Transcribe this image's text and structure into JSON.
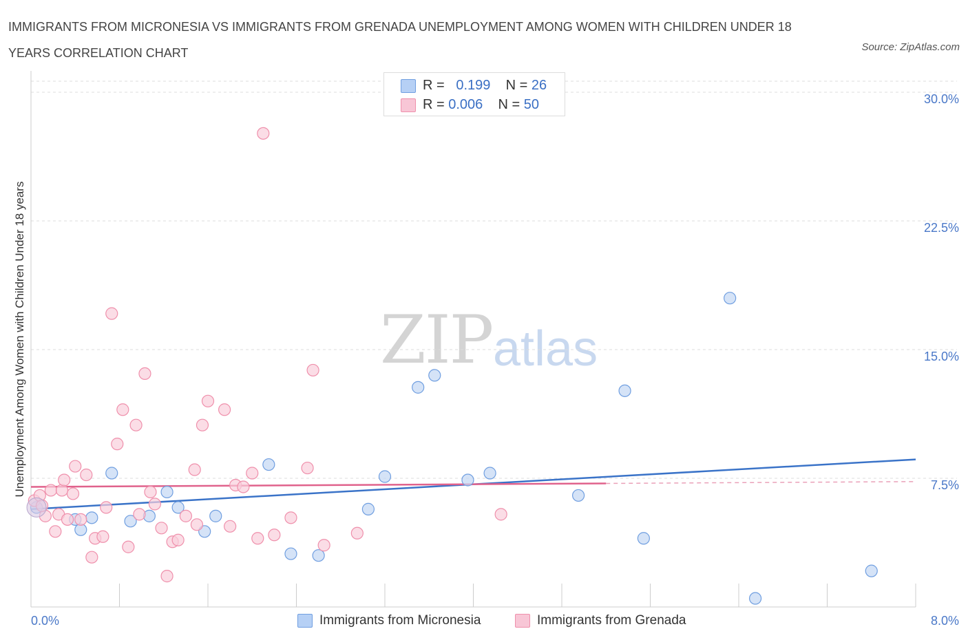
{
  "title": "IMMIGRANTS FROM MICRONESIA VS IMMIGRANTS FROM GRENADA UNEMPLOYMENT AMONG WOMEN WITH CHILDREN UNDER 18 YEARS CORRELATION CHART",
  "source": "Source: ZipAtlas.com",
  "watermark": {
    "zip": "ZIP",
    "atlas": "atlas"
  },
  "legend_top": [
    {
      "r_label": "R =",
      "r_value": "0.199",
      "n_label": "N =",
      "n_value": "26",
      "color": "#b6d0f5"
    },
    {
      "r_label": "R =",
      "r_value": "0.006",
      "n_label": "N =",
      "n_value": "50",
      "color": "#f8c6d6"
    }
  ],
  "chart_data": {
    "type": "scatter",
    "title": "IMMIGRANTS FROM MICRONESIA VS IMMIGRANTS FROM GRENADA UNEMPLOYMENT AMONG WOMEN WITH CHILDREN UNDER 18 YEARS CORRELATION CHART",
    "xlabel": "",
    "ylabel": "Unemployment Among Women with Children Under 18 years",
    "xlim": [
      0,
      8.0
    ],
    "ylim": [
      0,
      30.0
    ],
    "x_tick_labels": [
      "0.0%",
      "8.0%"
    ],
    "y_ticks": [
      7.5,
      15.0,
      22.5,
      30.0
    ],
    "y_tick_labels": [
      "7.5%",
      "15.0%",
      "22.5%",
      "30.0%"
    ],
    "grid": true,
    "legend_position": "bottom",
    "series": [
      {
        "name": "Immigrants from Micronesia",
        "color": "#6f9ee0",
        "fill": "#c3d7f3",
        "trend": {
          "x": [
            0.0,
            8.0
          ],
          "y": [
            5.7,
            8.6
          ],
          "color": "#3a73c8"
        },
        "points": [
          [
            0.05,
            5.8
          ],
          [
            0.4,
            5.1
          ],
          [
            0.45,
            4.5
          ],
          [
            0.55,
            5.2
          ],
          [
            0.73,
            7.8
          ],
          [
            0.9,
            5.0
          ],
          [
            1.07,
            5.3
          ],
          [
            1.23,
            6.7
          ],
          [
            1.33,
            5.8
          ],
          [
            1.57,
            4.4
          ],
          [
            1.67,
            5.3
          ],
          [
            2.15,
            8.3
          ],
          [
            2.35,
            3.1
          ],
          [
            2.6,
            3.0
          ],
          [
            3.05,
            5.7
          ],
          [
            3.2,
            7.6
          ],
          [
            3.5,
            12.8
          ],
          [
            3.65,
            13.5
          ],
          [
            3.95,
            7.4
          ],
          [
            4.15,
            7.8
          ],
          [
            4.95,
            6.5
          ],
          [
            5.37,
            12.6
          ],
          [
            5.54,
            4.0
          ],
          [
            6.32,
            18.0
          ],
          [
            6.55,
            0.5
          ],
          [
            7.6,
            2.1
          ]
        ]
      },
      {
        "name": "Immigrants from Grenada",
        "color": "#ef8fab",
        "fill": "#f9cfdb",
        "trend": {
          "x": [
            0.0,
            5.2
          ],
          "y": [
            7.0,
            7.2
          ],
          "color": "#e0628c",
          "dashed_to": 8.0
        },
        "points": [
          [
            0.03,
            6.2
          ],
          [
            0.08,
            6.5
          ],
          [
            0.13,
            5.3
          ],
          [
            0.18,
            6.8
          ],
          [
            0.22,
            4.4
          ],
          [
            0.25,
            5.4
          ],
          [
            0.28,
            6.8
          ],
          [
            0.3,
            7.4
          ],
          [
            0.33,
            5.1
          ],
          [
            0.38,
            6.6
          ],
          [
            0.4,
            8.2
          ],
          [
            0.45,
            5.1
          ],
          [
            0.5,
            7.7
          ],
          [
            0.55,
            2.9
          ],
          [
            0.58,
            4.0
          ],
          [
            0.65,
            4.1
          ],
          [
            0.68,
            5.8
          ],
          [
            0.73,
            17.1
          ],
          [
            0.78,
            9.5
          ],
          [
            0.83,
            11.5
          ],
          [
            0.88,
            3.5
          ],
          [
            0.95,
            10.6
          ],
          [
            0.98,
            5.4
          ],
          [
            1.03,
            13.6
          ],
          [
            1.08,
            6.7
          ],
          [
            1.12,
            6.0
          ],
          [
            1.18,
            4.6
          ],
          [
            1.23,
            1.8
          ],
          [
            1.28,
            3.8
          ],
          [
            1.33,
            3.9
          ],
          [
            1.4,
            5.3
          ],
          [
            1.48,
            8.0
          ],
          [
            1.55,
            10.6
          ],
          [
            1.6,
            12.0
          ],
          [
            1.75,
            11.5
          ],
          [
            1.8,
            4.7
          ],
          [
            1.85,
            7.1
          ],
          [
            1.92,
            7.0
          ],
          [
            2.0,
            7.8
          ],
          [
            2.05,
            4.0
          ],
          [
            2.1,
            27.6
          ],
          [
            2.2,
            4.2
          ],
          [
            2.35,
            5.2
          ],
          [
            2.5,
            8.1
          ],
          [
            2.55,
            13.8
          ],
          [
            2.65,
            3.6
          ],
          [
            2.95,
            4.3
          ],
          [
            4.25,
            5.4
          ],
          [
            0.1,
            5.9
          ],
          [
            1.5,
            4.8
          ]
        ]
      }
    ]
  },
  "bottom_legend": [
    {
      "label": "Immigrants from Micronesia",
      "color": "#b6d0f5",
      "border": "#6f9ee0"
    },
    {
      "label": "Immigrants from Grenada",
      "color": "#f8c6d6",
      "border": "#ef8fab"
    }
  ]
}
